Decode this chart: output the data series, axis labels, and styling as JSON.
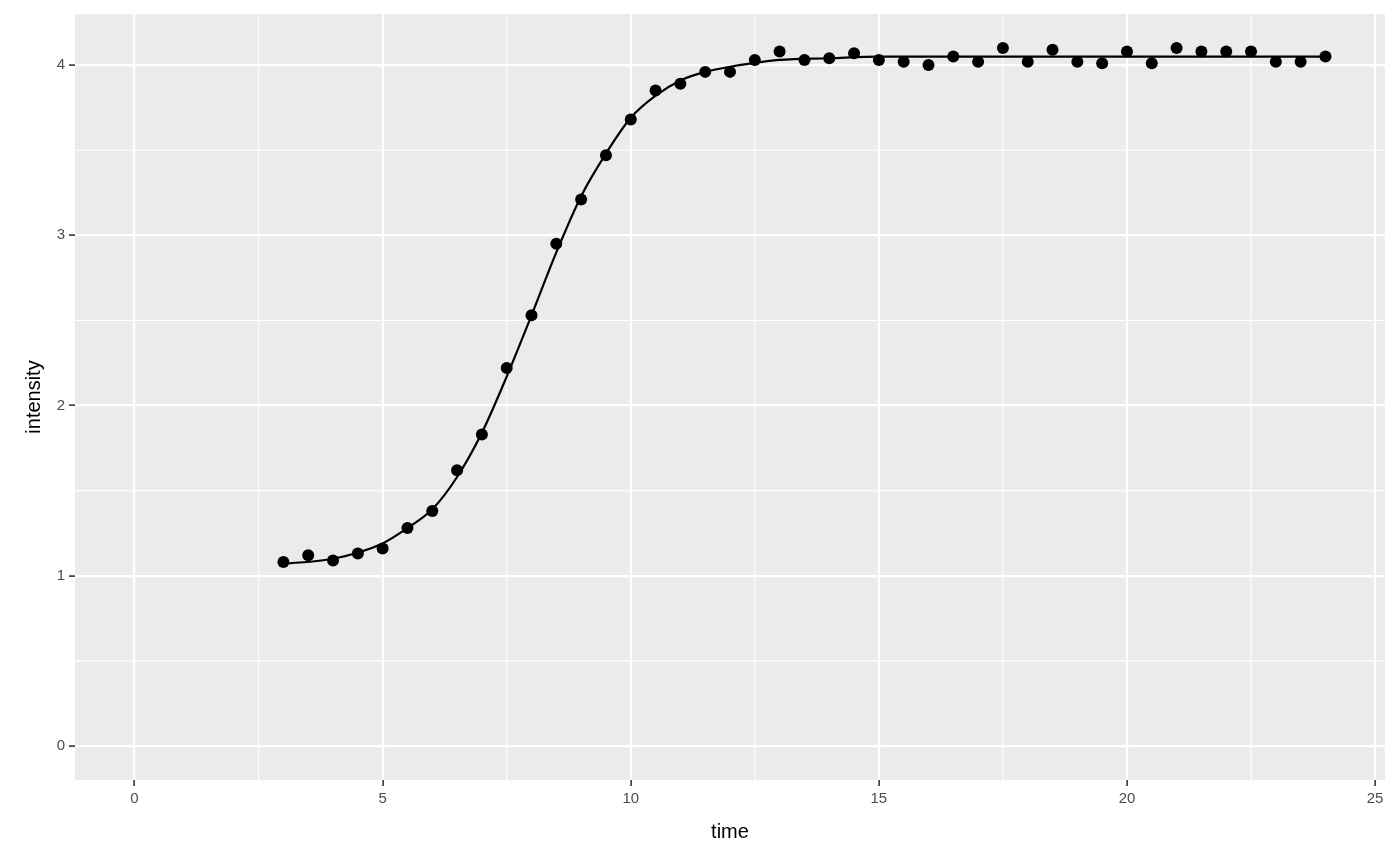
{
  "chart_data": {
    "type": "scatter",
    "xlabel": "time",
    "ylabel": "intensity",
    "x": [
      3,
      3.5,
      4,
      4.5,
      5,
      5.5,
      6,
      6.5,
      7,
      7.5,
      8,
      8.5,
      9,
      9.5,
      10,
      10.5,
      11,
      11.5,
      12,
      12.5,
      13,
      13.5,
      14,
      14.5,
      15,
      15.5,
      16,
      16.5,
      17,
      17.5,
      18,
      18.5,
      19,
      19.5,
      20,
      20.5,
      21,
      21.5,
      22,
      22.5,
      23,
      23.5,
      24
    ],
    "series": [
      {
        "color": "#000000",
        "values": [
          1.08,
          1.12,
          1.09,
          1.13,
          1.16,
          1.28,
          1.38,
          1.62,
          1.83,
          2.22,
          2.53,
          2.95,
          3.21,
          3.47,
          3.68,
          3.85,
          3.89,
          3.96,
          3.96,
          4.03,
          4.08,
          4.03,
          4.04,
          4.07,
          4.03,
          4.02,
          4.0,
          4.05,
          4.02,
          4.1,
          4.02,
          4.09,
          4.02,
          4.01,
          4.08,
          4.01,
          4.1,
          4.08,
          4.08,
          4.08,
          4.02,
          4.02,
          4.05
        ]
      },
      {
        "type": "line",
        "color": "#000000",
        "marker": "none",
        "x": [
          3,
          4,
          5,
          5.5,
          6,
          6.5,
          7,
          7.5,
          8,
          8.5,
          9,
          9.5,
          10,
          10.5,
          11,
          11.5,
          12,
          13,
          14,
          15,
          24
        ],
        "values": [
          1.07,
          1.1,
          1.19,
          1.28,
          1.39,
          1.58,
          1.84,
          2.17,
          2.53,
          2.9,
          3.23,
          3.48,
          3.69,
          3.82,
          3.91,
          3.96,
          3.99,
          4.03,
          4.04,
          4.05,
          4.05
        ]
      }
    ],
    "xlim": [
      -1.2,
      25.2
    ],
    "xticks": [
      0,
      5,
      10,
      15,
      20,
      25
    ],
    "ylim": [
      -0.2,
      4.3
    ],
    "yticks": [
      0,
      1,
      2,
      3,
      4
    ],
    "grid": true,
    "marker": "circle"
  }
}
